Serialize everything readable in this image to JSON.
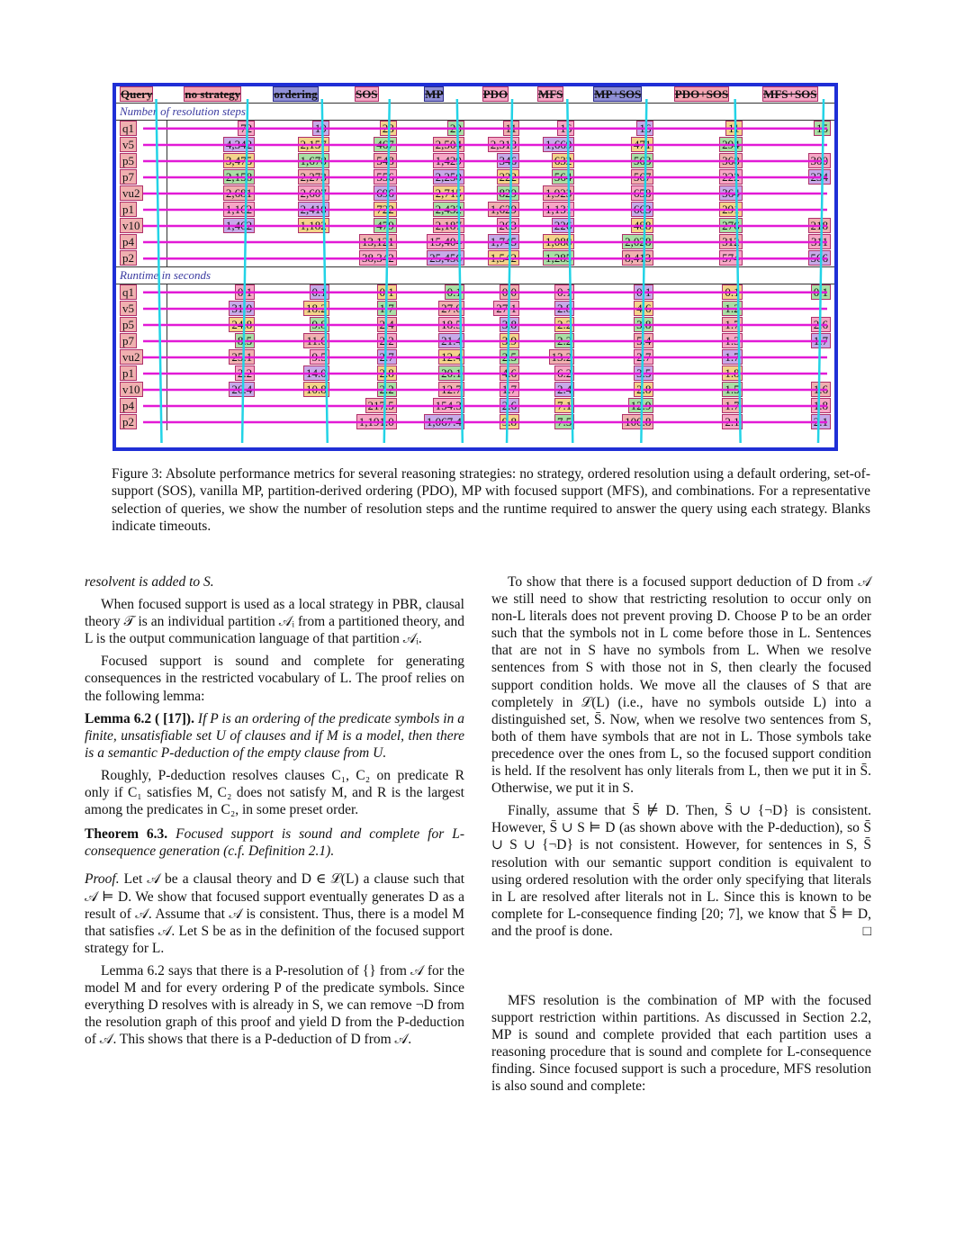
{
  "table": {
    "headers": [
      "Query",
      "no strategy",
      "ordering",
      "SOS",
      "MP",
      "PDO",
      "MFS",
      "MP+SOS",
      "PDO+SOS",
      "MFS+SOS"
    ],
    "sections": [
      {
        "title": "Number of resolution steps",
        "rows": [
          {
            "q": "q1",
            "v": [
              "72",
              "19",
              "28",
              "20",
              "11",
              "16",
              "16",
              "11",
              "15"
            ]
          },
          {
            "q": "v5",
            "v": [
              "4,342",
              "2,157",
              "467",
              "2,504",
              "2,318",
              "1,669",
              "471",
              "294",
              ""
            ]
          },
          {
            "q": "p5",
            "v": [
              "3,475",
              "1,678",
              "548",
              "1,429",
              "346",
              "632",
              "563",
              "368",
              "300"
            ]
          },
          {
            "q": "p7",
            "v": [
              "2,158",
              "2,273",
              "556",
              "2,250",
              "222",
              "564",
              "567",
              "222",
              "234"
            ]
          },
          {
            "q": "vu2",
            "v": [
              "2,681",
              "2,607",
              "696",
              "2,715",
              "829",
              "1,923",
              "658",
              "364",
              ""
            ]
          },
          {
            "q": "p1",
            "v": [
              "1,162",
              "2,410",
              "722",
              "2,432",
              "1,629",
              "1,131",
              "663",
              "291",
              ""
            ]
          },
          {
            "q": "v10",
            "v": [
              "1,462",
              "1,182",
              "479",
              "2,187",
              "263",
              "226",
              "488",
              "276",
              "218"
            ]
          },
          {
            "q": "p4",
            "v": [
              "",
              "",
              "13,121",
              "15,404",
              "1,745",
              "1,088",
              "2,028",
              "312",
              "311"
            ]
          },
          {
            "q": "p2",
            "v": [
              "",
              "",
              "38,342",
              "25,456",
              "1,542",
              "1,285",
              "8,413",
              "574",
              "566"
            ]
          }
        ]
      },
      {
        "title": "Runtime in seconds",
        "rows": [
          {
            "q": "q1",
            "v": [
              "0.1",
              "0.1",
              "0.1",
              "0.1",
              "0.0",
              "0.1",
              "0.1",
              "0.1",
              "0.1"
            ]
          },
          {
            "q": "v5",
            "v": [
              "31.9",
              "18.2",
              "1.7",
              "27.0",
              "27.1",
              "2.8",
              "4.6",
              "1.2",
              ""
            ]
          },
          {
            "q": "p5",
            "v": [
              "24.8",
              "9.8",
              "2.4",
              "18.5",
              "3.8",
              "2.2",
              "3.8",
              "1.7",
              "2.6"
            ]
          },
          {
            "q": "p7",
            "v": [
              "8.5",
              "11.6",
              "2.2",
              "21.4",
              "3.9",
              "2.2",
              "5.4",
              "1.3",
              "1.7"
            ]
          },
          {
            "q": "vu2",
            "v": [
              "25.1",
              "9.5",
              "2.7",
              "12.4",
              "2.5",
              "13.2",
              "2.7",
              "1.7",
              ""
            ]
          },
          {
            "q": "p1",
            "v": [
              "2.2",
              "14.0",
              "2.8",
              "20.1",
              "4.6",
              "6.2",
              "3.5",
              "1.8",
              ""
            ]
          },
          {
            "q": "v10",
            "v": [
              "26.4",
              "10.8",
              "2.2",
              "12.7",
              "1.7",
              "2.4",
              "2.8",
              "1.5",
              "1.6"
            ]
          },
          {
            "q": "p4",
            "v": [
              "",
              "",
              "217.5",
              "154.3",
              "2.6",
              "7.1",
              "12.9",
              "1.7",
              "1.8"
            ]
          },
          {
            "q": "p2",
            "v": [
              "",
              "",
              "1,191.0",
              "1,067.4",
              "9.8",
              "7.5",
              "100.8",
              "2.1",
              "2.1"
            ]
          }
        ]
      }
    ]
  },
  "caption": "Figure 3: Absolute performance metrics for several reasoning strategies: no strategy, ordered resolution using a default ordering, set-of-support (SOS), vanilla MP, partition-derived ordering (PDO), MP with focused support (MFS), and combinations. For a representative selection of queries, we show the number of resolution steps and the runtime required to answer the query using each strategy. Blanks indicate timeouts.",
  "left": {
    "p0": "resolvent is added to S.",
    "p1": "When focused support is used as a local strategy in PBR, clausal theory 𝒯 is an individual partition 𝒜ᵢ from a partitioned theory, and L is the output communication language of that partition 𝒜ᵢ.",
    "p2": "Focused support is sound and complete for generating consequences in the restricted vocabulary of L. The proof relies on the following lemma:",
    "lemma_head": "Lemma 6.2 ( [17]).",
    "lemma_body": "If P is an ordering of the predicate symbols in a finite, unsatisfiable set U of clauses and if M is a model, then there is a semantic P-deduction of the empty clause from U.",
    "p3": "Roughly, P-deduction resolves clauses C₁, C₂ on predicate R only if C₁ satisfies M, C₂ does not satisfy M, and R is the largest among the predicates in C₂, in some preset order.",
    "thm_head": "Theorem 6.3.",
    "thm_body": "Focused support is sound and complete for L-consequence generation (c.f. Definition 2.1).",
    "proof_head": "Proof.",
    "proof_body": "Let 𝒜 be a clausal theory and D ∈ ℒ(L) a clause such that 𝒜 ⊨ D. We show that focused support eventually generates D as a result of 𝒜. Assume that 𝒜 is consistent. Thus, there is a model M that satisfies 𝒜. Let S be as in the definition of the focused support strategy for L.",
    "p4": "Lemma 6.2 says that there is a P-resolution of {} from 𝒜 for the model M and for every ordering P of the predicate symbols. Since everything D resolves with is already in S, we can remove ¬D from the resolution graph of this proof and yield D from the P-deduction of 𝒜. This shows that there is a P-deduction of D from 𝒜."
  },
  "right": {
    "p1": "To show that there is a focused support deduction of D from 𝒜 we still need to show that restricting resolution to occur only on non-L literals does not prevent proving D. Choose P to be an order such that the symbols not in L come before those in L. Sentences that are not in S have no symbols from L. When we resolve sentences from S with those not in S, then clearly the focused support condition holds. We move all the clauses of S that are completely in ℒ(L) (i.e., have no symbols outside L) into a distinguished set, S̄. Now, when we resolve two sentences from S, both of them have symbols that are not in L. Those symbols take precedence over the ones from L, so the focused support condition is held. If the resolvent has only literals from L, then we put it in S̄. Otherwise, we put it in S.",
    "p2": "Finally, assume that S̄ ⊭ D. Then, S̄ ∪ {¬D} is consistent. However, S̄ ∪ S ⊨ D (as shown above with the P-deduction), so S̄ ∪ S ∪ {¬D} is not consistent. However, for sentences in S, S̄ resolution with our semantic support condition is equivalent to using ordered resolution with the order only specifying that literals in L are resolved after literals not in L. Since this is known to be complete for L-consequence finding [20; 7], we know that S̄ ⊨ D, and the proof is done.",
    "qed": "□",
    "p3": "MFS resolution is the combination of MP with the focused support restriction within partitions. As discussed in Section 2.2, MP is sound and complete provided that each partition uses a reasoning procedure that is sound and complete for L-consequence finding. Since focused support is such a procedure, MFS resolution is also sound and complete:"
  }
}
